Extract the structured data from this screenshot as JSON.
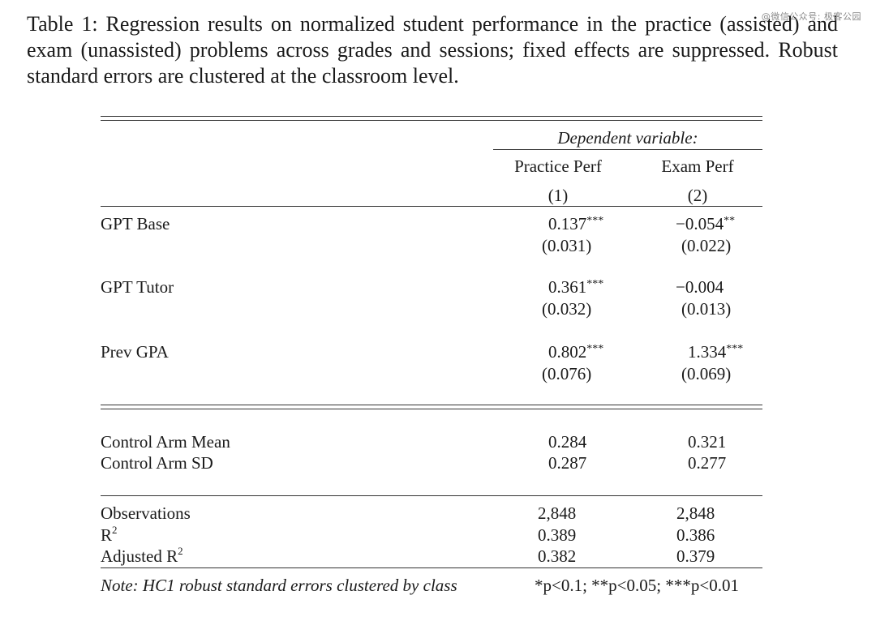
{
  "caption": "Table 1: Regression results on normalized student performance in the practice (assisted) and exam (unassisted) problems across grades and sessions; fixed effects are suppressed. Robust standard errors are clustered at the classroom level.",
  "watermark": "@微信公众号: 极客公园",
  "table": {
    "dependent_variable": "Dependent variable:",
    "columns": [
      {
        "label": "Practice Perf",
        "number": "(1)"
      },
      {
        "label": "Exam Perf",
        "number": "(2)"
      }
    ],
    "coefficients": [
      {
        "name": "GPT Base",
        "c1": "0.137",
        "s1": "***",
        "se1": "(0.031)",
        "c2": "−0.054",
        "s2": "**",
        "se2": "(0.022)"
      },
      {
        "name": "GPT Tutor",
        "c1": "0.361",
        "s1": "***",
        "se1": "(0.032)",
        "c2": "−0.004",
        "s2": "",
        "se2": "(0.013)"
      },
      {
        "name": "Prev GPA",
        "c1": "0.802",
        "s1": "***",
        "se1": "(0.076)",
        "c2": "1.334",
        "s2": "***",
        "se2": "(0.069)"
      }
    ],
    "control": [
      {
        "name": "Control Arm Mean",
        "v1": "0.284",
        "v2": "0.321"
      },
      {
        "name": "Control Arm SD",
        "v1": "0.287",
        "v2": "0.277"
      }
    ],
    "stats": [
      {
        "name": "Observations",
        "sup": "",
        "v1": "2,848",
        "v2": "2,848"
      },
      {
        "name": "R",
        "sup": "2",
        "v1": "0.389",
        "v2": "0.386"
      },
      {
        "name": "Adjusted R",
        "sup": "2",
        "v1": "0.382",
        "v2": "0.379"
      }
    ],
    "note": "Note: HC1 robust standard errors clustered by class",
    "significance": "*p<0.1; **p<0.05; ***p<0.01"
  }
}
